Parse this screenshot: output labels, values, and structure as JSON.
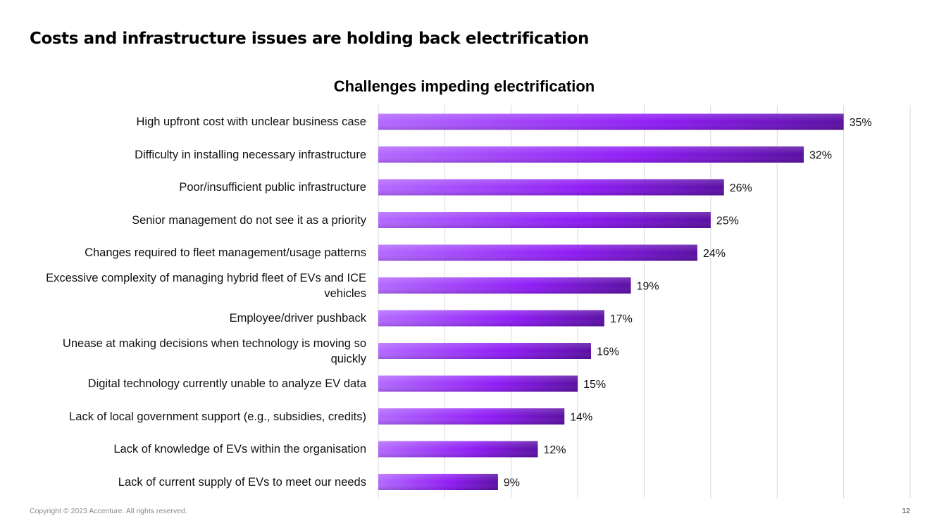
{
  "page": {
    "title": "Costs and infrastructure issues are holding back electrification",
    "footer_copyright": "Copyright © 2023 Accenture. All rights reserved.",
    "page_number": "12"
  },
  "colors": {
    "bar_light": "#b369ff",
    "bar_mid": "#8f1cf5",
    "bar_dark": "#5a0fa3",
    "grid": "#d9d9d9",
    "text": "#111111"
  },
  "chart_data": {
    "type": "bar",
    "orientation": "horizontal",
    "title": "Challenges impeding electrification",
    "xlabel": "",
    "ylabel": "",
    "xlim": [
      0,
      40
    ],
    "grid": true,
    "categories": [
      "High upfront cost with unclear business case",
      "Difficulty in installing necessary infrastructure",
      "Poor/insufficient public infrastructure",
      "Senior management do not see it as a priority",
      "Changes required to fleet management/usage patterns",
      "Excessive complexity of managing hybrid fleet of EVs and ICE vehicles",
      "Employee/driver pushback",
      "Unease at making decisions when technology is moving so quickly",
      "Digital technology currently unable to analyze EV data",
      "Lack of local government support (e.g., subsidies, credits)",
      "Lack of knowledge of EVs within the organisation",
      "Lack of current supply of EVs to meet our needs"
    ],
    "values": [
      35,
      32,
      26,
      25,
      24,
      19,
      17,
      16,
      15,
      14,
      12,
      9
    ],
    "value_labels": [
      "35%",
      "32%",
      "26%",
      "25%",
      "24%",
      "19%",
      "17%",
      "16%",
      "15%",
      "14%",
      "12%",
      "9%"
    ]
  }
}
